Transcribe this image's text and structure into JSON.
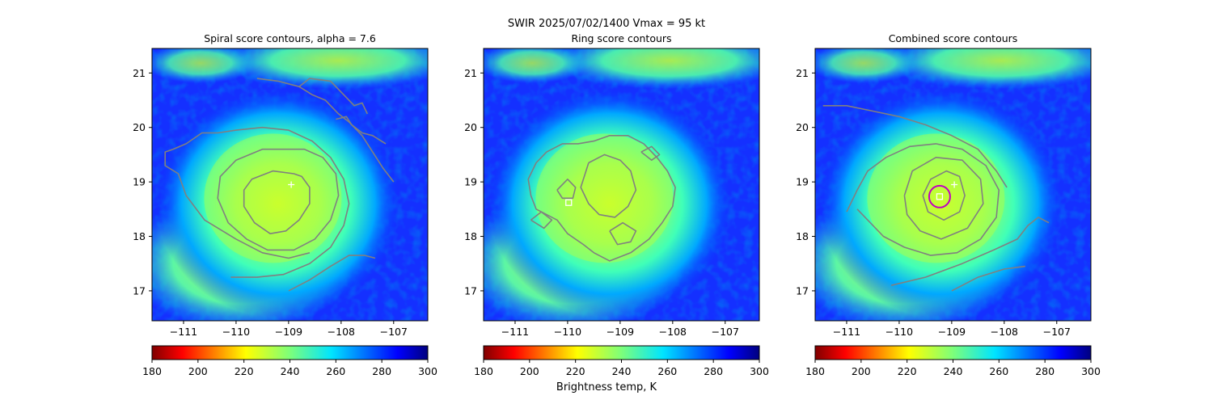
{
  "figure": {
    "suptitle": "SWIR  2025/07/02/1400    Vmax = 95 kt",
    "colorbar_label": "Brightness temp, K"
  },
  "colors": {
    "contour": "#808080",
    "marker": "#ffffff",
    "fit_circle": "#c000c0"
  },
  "chart_data": [
    {
      "type": "heatmap",
      "title": "Spiral score contours, alpha =  7.6",
      "xlim": [
        -111.6,
        -106.35
      ],
      "ylim": [
        16.45,
        21.45
      ],
      "xticks": [
        -111,
        -110,
        -109,
        -108,
        -107
      ],
      "xtick_labels": [
        "−111",
        "−110",
        "−109",
        "−108",
        "−107"
      ],
      "yticks": [
        17,
        18,
        19,
        20,
        21
      ],
      "ytick_labels": [
        "17",
        "18",
        "19",
        "20",
        "21"
      ],
      "colorbar": {
        "vmin": 180,
        "vmax": 300,
        "cmap": "jet_r",
        "ticks": [
          180,
          200,
          220,
          240,
          260,
          280,
          300
        ],
        "tick_labels": [
          "180",
          "200",
          "220",
          "240",
          "260",
          "280",
          "300"
        ]
      },
      "markers": [
        {
          "type": "plus",
          "lon": -108.95,
          "lat": 18.95
        }
      ],
      "fit_circle": null,
      "contours": [
        [
          [
            -108.9,
            19.15
          ],
          [
            -109.3,
            19.2
          ],
          [
            -109.7,
            19.05
          ],
          [
            -109.85,
            18.85
          ],
          [
            -109.85,
            18.55
          ],
          [
            -109.65,
            18.25
          ],
          [
            -109.35,
            18.05
          ],
          [
            -109.05,
            18.1
          ],
          [
            -108.8,
            18.3
          ],
          [
            -108.6,
            18.6
          ],
          [
            -108.6,
            18.9
          ],
          [
            -108.75,
            19.1
          ],
          [
            -108.9,
            19.15
          ]
        ],
        [
          [
            -109.0,
            19.6
          ],
          [
            -109.5,
            19.6
          ],
          [
            -110.0,
            19.4
          ],
          [
            -110.3,
            19.1
          ],
          [
            -110.35,
            18.7
          ],
          [
            -110.15,
            18.25
          ],
          [
            -109.8,
            17.95
          ],
          [
            -109.4,
            17.75
          ],
          [
            -108.9,
            17.75
          ],
          [
            -108.5,
            17.95
          ],
          [
            -108.2,
            18.3
          ],
          [
            -108.05,
            18.75
          ],
          [
            -108.1,
            19.15
          ],
          [
            -108.35,
            19.45
          ],
          [
            -108.7,
            19.6
          ],
          [
            -109.0,
            19.6
          ]
        ],
        [
          [
            -110.1,
            17.25
          ],
          [
            -109.6,
            17.25
          ],
          [
            -109.1,
            17.3
          ],
          [
            -108.6,
            17.5
          ],
          [
            -108.2,
            17.8
          ],
          [
            -107.95,
            18.2
          ],
          [
            -107.85,
            18.6
          ],
          [
            -107.95,
            19.05
          ],
          [
            -108.2,
            19.45
          ],
          [
            -108.55,
            19.75
          ],
          [
            -109.0,
            19.95
          ],
          [
            -109.5,
            20.0
          ],
          [
            -110.0,
            19.95
          ],
          [
            -110.35,
            19.9
          ],
          [
            -110.65,
            19.9
          ],
          [
            -110.95,
            19.7
          ],
          [
            -111.2,
            19.6
          ],
          [
            -111.35,
            19.55
          ],
          [
            -111.35,
            19.3
          ],
          [
            -111.1,
            19.15
          ],
          [
            -110.95,
            18.75
          ],
          [
            -110.6,
            18.3
          ],
          [
            -110.0,
            17.95
          ],
          [
            -109.5,
            17.7
          ],
          [
            -109.0,
            17.6
          ],
          [
            -108.6,
            17.7
          ]
        ],
        [
          [
            -109.0,
            17.0
          ],
          [
            -108.6,
            17.2
          ],
          [
            -108.2,
            17.45
          ],
          [
            -107.85,
            17.65
          ],
          [
            -107.55,
            17.65
          ],
          [
            -107.35,
            17.6
          ]
        ],
        [
          [
            -109.6,
            20.9
          ],
          [
            -109.2,
            20.85
          ],
          [
            -108.8,
            20.75
          ],
          [
            -108.55,
            20.6
          ],
          [
            -108.3,
            20.5
          ],
          [
            -108.05,
            20.25
          ],
          [
            -107.85,
            20.1
          ],
          [
            -107.6,
            19.85
          ],
          [
            -107.4,
            19.55
          ],
          [
            -107.2,
            19.25
          ],
          [
            -107.0,
            19.0
          ]
        ],
        [
          [
            -108.8,
            20.75
          ],
          [
            -108.6,
            20.9
          ],
          [
            -108.2,
            20.85
          ],
          [
            -107.95,
            20.6
          ],
          [
            -107.75,
            20.4
          ],
          [
            -107.6,
            20.45
          ],
          [
            -107.5,
            20.25
          ]
        ],
        [
          [
            -108.1,
            20.15
          ],
          [
            -107.9,
            20.2
          ],
          [
            -107.8,
            20.05
          ],
          [
            -107.6,
            19.9
          ],
          [
            -107.4,
            19.85
          ],
          [
            -107.15,
            19.7
          ]
        ]
      ]
    },
    {
      "type": "heatmap",
      "title": "Ring score contours",
      "xlim": [
        -111.6,
        -106.35
      ],
      "ylim": [
        16.45,
        21.45
      ],
      "xticks": [
        -111,
        -110,
        -109,
        -108,
        -107
      ],
      "xtick_labels": [
        "−111",
        "−110",
        "−109",
        "−108",
        "−107"
      ],
      "yticks": [
        17,
        18,
        19,
        20,
        21
      ],
      "ytick_labels": [
        "17",
        "18",
        "19",
        "20",
        "21"
      ],
      "colorbar": {
        "vmin": 180,
        "vmax": 300,
        "cmap": "jet_r",
        "ticks": [
          180,
          200,
          220,
          240,
          260,
          280,
          300
        ],
        "tick_labels": [
          "180",
          "200",
          "220",
          "240",
          "260",
          "280",
          "300"
        ]
      },
      "markers": [
        {
          "type": "square",
          "lon": -109.98,
          "lat": 18.62
        }
      ],
      "fit_circle": null,
      "contours": [
        [
          [
            -110.4,
            19.55
          ],
          [
            -110.6,
            19.35
          ],
          [
            -110.75,
            19.05
          ],
          [
            -110.7,
            18.75
          ],
          [
            -110.6,
            18.5
          ],
          [
            -110.2,
            18.3
          ],
          [
            -110.0,
            18.05
          ],
          [
            -109.7,
            17.85
          ],
          [
            -109.5,
            17.7
          ],
          [
            -109.2,
            17.55
          ],
          [
            -108.8,
            17.7
          ],
          [
            -108.45,
            17.95
          ],
          [
            -108.2,
            18.25
          ],
          [
            -108.0,
            18.55
          ],
          [
            -107.95,
            18.9
          ],
          [
            -108.1,
            19.2
          ],
          [
            -108.3,
            19.45
          ],
          [
            -108.55,
            19.7
          ],
          [
            -108.85,
            19.85
          ],
          [
            -109.2,
            19.85
          ],
          [
            -109.5,
            19.75
          ],
          [
            -109.8,
            19.7
          ],
          [
            -110.1,
            19.7
          ],
          [
            -110.4,
            19.55
          ]
        ],
        [
          [
            -109.6,
            19.35
          ],
          [
            -109.3,
            19.5
          ],
          [
            -109.0,
            19.4
          ],
          [
            -108.8,
            19.2
          ],
          [
            -108.7,
            18.85
          ],
          [
            -108.85,
            18.55
          ],
          [
            -109.1,
            18.35
          ],
          [
            -109.4,
            18.4
          ],
          [
            -109.6,
            18.6
          ],
          [
            -109.75,
            18.9
          ],
          [
            -109.6,
            19.35
          ]
        ],
        [
          [
            -110.2,
            18.85
          ],
          [
            -110.0,
            19.05
          ],
          [
            -109.85,
            18.9
          ],
          [
            -109.9,
            18.7
          ],
          [
            -110.1,
            18.7
          ],
          [
            -110.2,
            18.85
          ]
        ],
        [
          [
            -109.2,
            18.1
          ],
          [
            -108.95,
            18.25
          ],
          [
            -108.7,
            18.1
          ],
          [
            -108.8,
            17.9
          ],
          [
            -109.05,
            17.85
          ],
          [
            -109.2,
            18.1
          ]
        ],
        [
          [
            -110.7,
            18.3
          ],
          [
            -110.5,
            18.45
          ],
          [
            -110.3,
            18.3
          ],
          [
            -110.45,
            18.15
          ],
          [
            -110.7,
            18.3
          ]
        ],
        [
          [
            -108.6,
            19.55
          ],
          [
            -108.4,
            19.65
          ],
          [
            -108.25,
            19.5
          ],
          [
            -108.4,
            19.4
          ],
          [
            -108.6,
            19.55
          ]
        ]
      ]
    },
    {
      "type": "heatmap",
      "title": "Combined score contours",
      "xlim": [
        -111.6,
        -106.35
      ],
      "ylim": [
        16.45,
        21.45
      ],
      "xticks": [
        -111,
        -110,
        -109,
        -108,
        -107
      ],
      "xtick_labels": [
        "−111",
        "−110",
        "−109",
        "−108",
        "−107"
      ],
      "yticks": [
        17,
        18,
        19,
        20,
        21
      ],
      "ytick_labels": [
        "17",
        "18",
        "19",
        "20",
        "21"
      ],
      "colorbar": {
        "vmin": 180,
        "vmax": 300,
        "cmap": "jet_r",
        "ticks": [
          180,
          200,
          220,
          240,
          260,
          280,
          300
        ],
        "tick_labels": [
          "180",
          "200",
          "220",
          "240",
          "260",
          "280",
          "300"
        ]
      },
      "markers": [
        {
          "type": "plus",
          "lon": -108.95,
          "lat": 18.95
        },
        {
          "type": "square",
          "lon": -109.23,
          "lat": 18.73
        }
      ],
      "fit_circle": {
        "lon": -109.23,
        "lat": 18.73,
        "radius_deg": 0.2
      },
      "contours": [
        [
          [
            -109.55,
            18.75
          ],
          [
            -109.4,
            19.05
          ],
          [
            -109.1,
            19.2
          ],
          [
            -108.85,
            19.1
          ],
          [
            -108.75,
            18.75
          ],
          [
            -108.85,
            18.45
          ],
          [
            -109.15,
            18.3
          ],
          [
            -109.45,
            18.45
          ],
          [
            -109.55,
            18.75
          ]
        ],
        [
          [
            -109.9,
            18.75
          ],
          [
            -109.75,
            19.2
          ],
          [
            -109.3,
            19.45
          ],
          [
            -108.8,
            19.4
          ],
          [
            -108.45,
            19.05
          ],
          [
            -108.4,
            18.6
          ],
          [
            -108.7,
            18.15
          ],
          [
            -109.2,
            17.95
          ],
          [
            -109.6,
            18.1
          ],
          [
            -109.85,
            18.4
          ],
          [
            -109.9,
            18.75
          ]
        ],
        [
          [
            -111.0,
            18.45
          ],
          [
            -110.8,
            18.85
          ],
          [
            -110.6,
            19.2
          ],
          [
            -110.25,
            19.45
          ],
          [
            -109.8,
            19.65
          ],
          [
            -109.3,
            19.7
          ],
          [
            -108.8,
            19.6
          ],
          [
            -108.35,
            19.3
          ],
          [
            -108.1,
            18.85
          ],
          [
            -108.15,
            18.35
          ],
          [
            -108.45,
            17.95
          ],
          [
            -108.9,
            17.7
          ],
          [
            -109.4,
            17.65
          ],
          [
            -109.9,
            17.8
          ],
          [
            -110.3,
            18.0
          ],
          [
            -110.6,
            18.3
          ],
          [
            -110.8,
            18.5
          ]
        ],
        [
          [
            -110.15,
            17.1
          ],
          [
            -109.5,
            17.25
          ],
          [
            -108.8,
            17.5
          ],
          [
            -108.2,
            17.75
          ],
          [
            -107.75,
            17.95
          ],
          [
            -107.55,
            18.2
          ],
          [
            -107.35,
            18.35
          ],
          [
            -107.15,
            18.25
          ]
        ],
        [
          [
            -109.0,
            17.0
          ],
          [
            -108.5,
            17.25
          ],
          [
            -108.0,
            17.4
          ],
          [
            -107.6,
            17.45
          ]
        ],
        [
          [
            -111.45,
            20.4
          ],
          [
            -111.0,
            20.4
          ],
          [
            -110.5,
            20.3
          ],
          [
            -110.0,
            20.2
          ],
          [
            -109.5,
            20.05
          ],
          [
            -109.0,
            19.85
          ],
          [
            -108.5,
            19.6
          ],
          [
            -108.15,
            19.2
          ],
          [
            -107.95,
            18.9
          ]
        ]
      ]
    }
  ]
}
